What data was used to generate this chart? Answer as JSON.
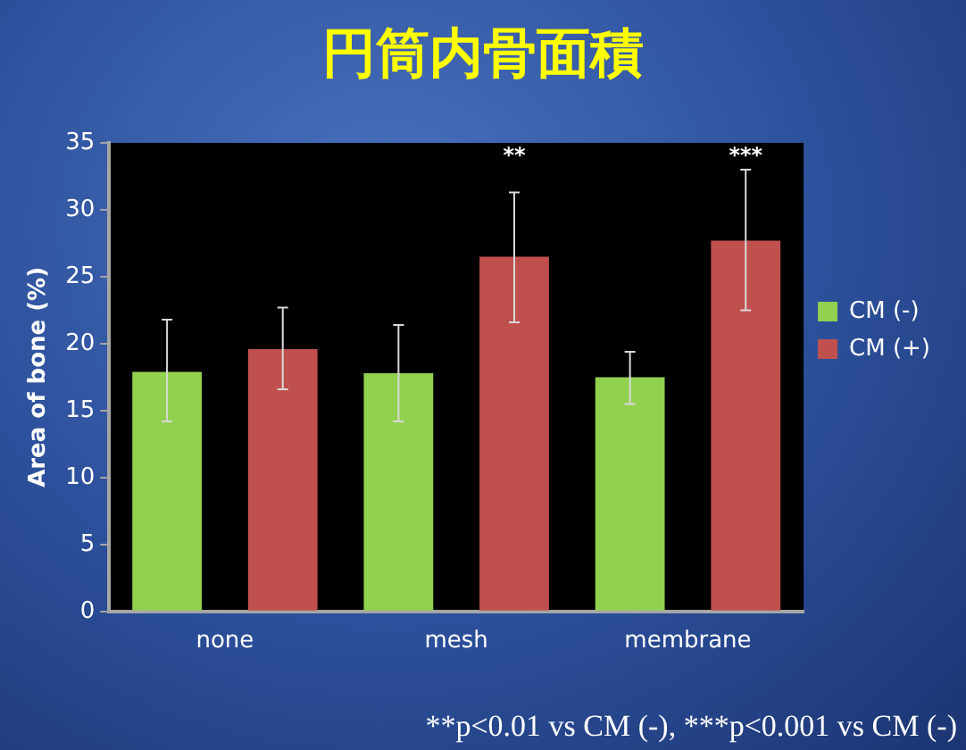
{
  "chart_data": {
    "type": "bar",
    "title": "円筒内骨面積",
    "ylabel": "Area of bone (%)",
    "categories": [
      "none",
      "mesh",
      "membrane"
    ],
    "series": [
      {
        "name": "CM (-)",
        "color": "#92d050",
        "values": [
          17.9,
          17.8,
          17.5
        ],
        "errors": [
          [
            14.2,
            21.8
          ],
          [
            14.2,
            21.4
          ],
          [
            15.5,
            19.4
          ]
        ]
      },
      {
        "name": "CM (+)",
        "color": "#c0504d",
        "values": [
          19.6,
          26.5,
          27.7
        ],
        "errors": [
          [
            16.6,
            22.7
          ],
          [
            21.6,
            31.3
          ],
          [
            22.5,
            33.0
          ]
        ]
      }
    ],
    "ylim": [
      0,
      35
    ],
    "yticks": [
      0,
      5,
      10,
      15,
      20,
      25,
      30,
      35
    ],
    "grid": false,
    "legend": "right",
    "annotations": [
      "**",
      "***",
      "**p<0.01 vs CM (-), ***p<0.001 vs CM (-)"
    ]
  }
}
